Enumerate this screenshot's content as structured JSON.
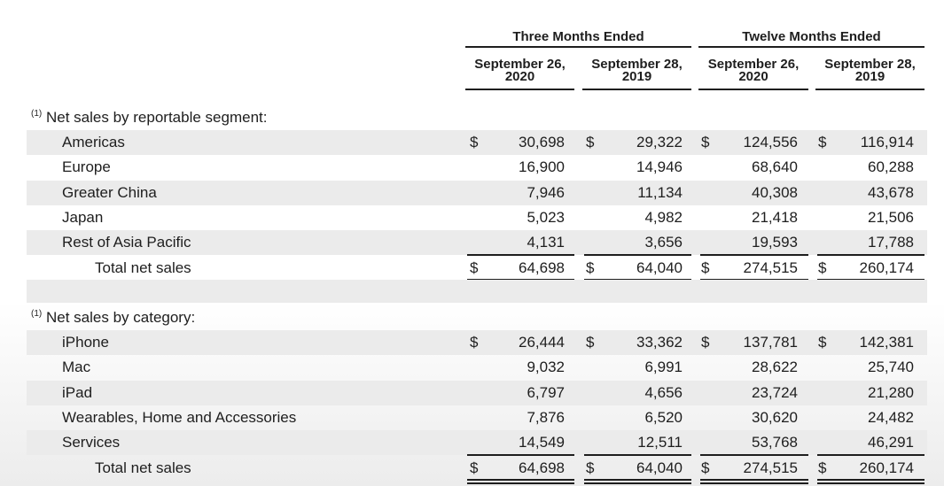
{
  "header": {
    "groups": [
      "Three Months Ended",
      "Twelve Months Ended"
    ],
    "columns": [
      {
        "date": "September 26,",
        "year": "2020"
      },
      {
        "date": "September 28,",
        "year": "2019"
      },
      {
        "date": "September 26,",
        "year": "2020"
      },
      {
        "date": "September 28,",
        "year": "2019"
      }
    ]
  },
  "currency_symbol": "$",
  "sections": [
    {
      "note": "(1)",
      "title": "Net sales by reportable segment:",
      "rows": [
        {
          "label": "Americas",
          "values": [
            "30,698",
            "29,322",
            "124,556",
            "116,914"
          ]
        },
        {
          "label": "Europe",
          "values": [
            "16,900",
            "14,946",
            "68,640",
            "60,288"
          ]
        },
        {
          "label": "Greater China",
          "values": [
            "7,946",
            "11,134",
            "40,308",
            "43,678"
          ]
        },
        {
          "label": "Japan",
          "values": [
            "5,023",
            "4,982",
            "21,418",
            "21,506"
          ]
        },
        {
          "label": "Rest of Asia Pacific",
          "values": [
            "4,131",
            "3,656",
            "19,593",
            "17,788"
          ]
        }
      ],
      "total": {
        "label": "Total net sales",
        "values": [
          "64,698",
          "64,040",
          "274,515",
          "260,174"
        ]
      }
    },
    {
      "note": "(1)",
      "title": "Net sales by category:",
      "rows": [
        {
          "label": "iPhone",
          "values": [
            "26,444",
            "33,362",
            "137,781",
            "142,381"
          ]
        },
        {
          "label": "Mac",
          "values": [
            "9,032",
            "6,991",
            "28,622",
            "25,740"
          ]
        },
        {
          "label": "iPad",
          "values": [
            "6,797",
            "4,656",
            "23,724",
            "21,280"
          ]
        },
        {
          "label": "Wearables, Home and Accessories",
          "values": [
            "7,876",
            "6,520",
            "30,620",
            "24,482"
          ]
        },
        {
          "label": "Services",
          "values": [
            "14,549",
            "12,511",
            "53,768",
            "46,291"
          ]
        }
      ],
      "total": {
        "label": "Total net sales",
        "values": [
          "64,698",
          "64,040",
          "274,515",
          "260,174"
        ]
      }
    }
  ]
}
